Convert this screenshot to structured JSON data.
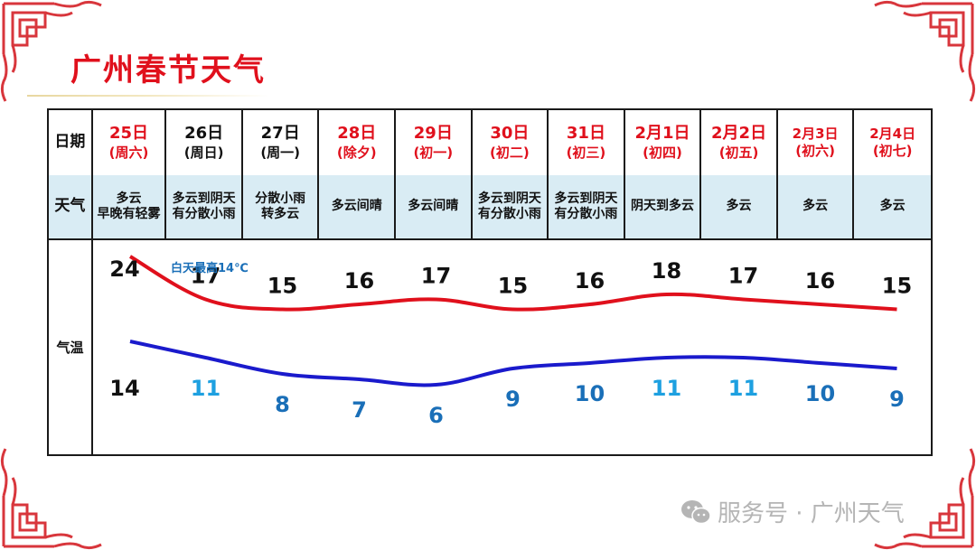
{
  "title": "广州春节天气",
  "table": {
    "row_label_date": "日期",
    "row_label_weather": "天气",
    "row_label_temp": "气温",
    "days": [
      {
        "date": "25日",
        "sub": "(周六)",
        "color": "#e0101c",
        "weather": [
          "多云",
          "早晚有轻雾"
        ]
      },
      {
        "date": "26日",
        "sub": "(周日)",
        "color": "#111111",
        "weather": [
          "多云到阴天",
          "有分散小雨"
        ]
      },
      {
        "date": "27日",
        "sub": "(周一)",
        "color": "#111111",
        "weather": [
          "分散小雨",
          "转多云"
        ]
      },
      {
        "date": "28日",
        "sub": "(除夕)",
        "color": "#e0101c",
        "weather": [
          "多云间晴"
        ]
      },
      {
        "date": "29日",
        "sub": "(初一)",
        "color": "#e0101c",
        "weather": [
          "多云间晴"
        ]
      },
      {
        "date": "30日",
        "sub": "(初二)",
        "color": "#e0101c",
        "weather": [
          "多云到阴天",
          "有分散小雨"
        ]
      },
      {
        "date": "31日",
        "sub": "(初三)",
        "color": "#e0101c",
        "weather": [
          "多云到阴天",
          "有分散小雨"
        ]
      },
      {
        "date": "2月1日",
        "sub": "(初四)",
        "color": "#e0101c",
        "weather": [
          "阴天到多云"
        ]
      },
      {
        "date": "2月2日",
        "sub": "(初五)",
        "color": "#e0101c",
        "weather": [
          "多云"
        ]
      },
      {
        "date": "2月3日",
        "sub": "(初六)",
        "color": "#e0101c",
        "weather": [
          "多云"
        ],
        "small": true
      },
      {
        "date": "2月4日",
        "sub": "(初七)",
        "color": "#e0101c",
        "weather": [
          "多云"
        ],
        "small": true
      }
    ]
  },
  "chart_data": {
    "type": "line",
    "categories": [
      "25日",
      "26日",
      "27日",
      "28日",
      "29日",
      "30日",
      "31日",
      "2月1日",
      "2月2日",
      "2月3日",
      "2月4日"
    ],
    "series": [
      {
        "name": "",
        "values": [
          24,
          17,
          15,
          16,
          17,
          15,
          16,
          18,
          17,
          16,
          15
        ],
        "color": "#e0101c"
      },
      {
        "name": "",
        "values": [
          14,
          11,
          8,
          7,
          6,
          9,
          10,
          11,
          11,
          10,
          9
        ],
        "color": "#1a1acc"
      }
    ],
    "high_label_color": "#111111",
    "low_label_colors": [
      "#111111",
      "#1ea0e0",
      "#1a6fb8",
      "#1a6fb8",
      "#1a6fb8",
      "#1a6fb8",
      "#1a6fb8",
      "#1ea0e0",
      "#1ea0e0",
      "#1a6fb8",
      "#1a6fb8"
    ],
    "annotation": {
      "text": "白天最高14℃",
      "color": "#1a6fb8"
    }
  },
  "watermark": "服务号 · 广州天气"
}
